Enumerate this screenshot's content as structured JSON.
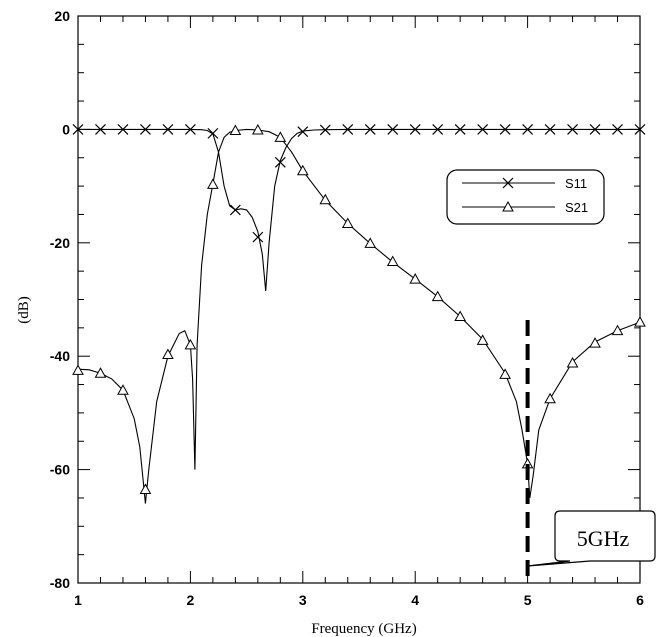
{
  "chart_data": {
    "type": "line",
    "title": "",
    "xlabel": "Frequency (GHz)",
    "ylabel": "(dB)",
    "xlim": [
      1,
      6
    ],
    "ylim": [
      -80,
      20
    ],
    "xticks": [
      "1",
      "2",
      "3",
      "4",
      "5",
      "6"
    ],
    "yticks": [
      "20",
      "0",
      "-20",
      "-40",
      "-60",
      "-80"
    ],
    "grid": false,
    "legend_position": "right",
    "series": [
      {
        "name": "S11",
        "marker": "x",
        "curve_x": [
          1.0,
          1.2,
          1.4,
          1.6,
          1.8,
          2.0,
          2.1,
          2.15,
          2.2,
          2.25,
          2.3,
          2.35,
          2.4,
          2.45,
          2.5,
          2.55,
          2.6,
          2.64,
          2.67,
          2.7,
          2.75,
          2.8,
          2.85,
          2.9,
          2.95,
          3.0,
          3.1,
          3.2,
          3.4,
          3.6,
          3.8,
          4.0,
          4.5,
          5.0,
          5.5,
          6.0
        ],
        "curve_y": [
          0,
          0,
          0,
          0,
          0,
          0,
          -0.05,
          -0.2,
          -0.8,
          -4,
          -10,
          -13.5,
          -14.2,
          -14,
          -14.2,
          -15.5,
          -18,
          -22,
          -28.5,
          -20,
          -10,
          -5.5,
          -3.2,
          -1.6,
          -0.7,
          -0.3,
          -0.1,
          -0.05,
          0,
          0,
          0,
          0,
          0,
          0,
          0,
          0
        ],
        "marker_x": [
          1.0,
          1.2,
          1.4,
          1.6,
          1.8,
          2.0,
          2.2,
          2.4,
          2.6,
          2.8,
          3.0,
          3.2,
          3.4,
          3.6,
          3.8,
          4.0,
          4.2,
          4.4,
          4.6,
          4.8,
          5.0,
          5.2,
          5.4,
          5.6,
          5.8,
          6.0
        ],
        "marker_y": [
          0,
          0,
          0,
          0,
          0,
          0,
          -0.7,
          -14.2,
          -19,
          -5.8,
          -0.4,
          -0.1,
          0,
          0,
          0,
          0,
          0,
          0,
          0,
          0,
          0,
          0,
          0,
          0,
          0,
          0
        ]
      },
      {
        "name": "S21",
        "marker": "triangle",
        "curve_x": [
          1.0,
          1.1,
          1.2,
          1.3,
          1.4,
          1.5,
          1.55,
          1.58,
          1.6,
          1.63,
          1.7,
          1.8,
          1.9,
          1.95,
          2.0,
          2.02,
          2.04,
          2.06,
          2.1,
          2.15,
          2.2,
          2.25,
          2.3,
          2.35,
          2.4,
          2.5,
          2.6,
          2.7,
          2.8,
          2.9,
          3.0,
          3.2,
          3.4,
          3.6,
          3.8,
          4.0,
          4.2,
          4.4,
          4.6,
          4.8,
          4.9,
          4.95,
          5.0,
          5.02,
          5.05,
          5.1,
          5.2,
          5.4,
          5.6,
          5.8,
          6.0
        ],
        "curve_y": [
          -42.3,
          -42.4,
          -43,
          -44,
          -46,
          -51,
          -56,
          -62,
          -66,
          -60,
          -48,
          -40,
          -36,
          -35.5,
          -38,
          -44,
          -60,
          -38,
          -24,
          -15,
          -9.6,
          -4,
          -1.4,
          -0.5,
          -0.2,
          0,
          -0.1,
          -0.4,
          -1.4,
          -4,
          -7.3,
          -12.5,
          -16.6,
          -20.1,
          -23.4,
          -26.4,
          -29.5,
          -33,
          -37,
          -43,
          -48,
          -53,
          -59,
          -65,
          -61,
          -53,
          -47.5,
          -41,
          -37.5,
          -35.5,
          -34
        ],
        "marker_x": [
          1.0,
          1.2,
          1.4,
          1.6,
          1.8,
          2.0,
          2.2,
          2.4,
          2.6,
          2.8,
          3.0,
          3.2,
          3.4,
          3.6,
          3.8,
          4.0,
          4.2,
          4.4,
          4.6,
          4.8,
          5.0,
          5.2,
          5.4,
          5.6,
          5.8,
          6.0
        ],
        "marker_y": [
          -42.5,
          -43,
          -46,
          -63.5,
          -39.7,
          -38,
          -9.7,
          -0.2,
          -0.1,
          -1.4,
          -7.3,
          -12.4,
          -16.6,
          -20.1,
          -23.3,
          -26.4,
          -29.5,
          -33,
          -37.2,
          -43.2,
          -59,
          -47.5,
          -41.2,
          -37.7,
          -35.5,
          -34
        ]
      }
    ],
    "marker_line": {
      "x": 5.0,
      "style": "dashed",
      "color": "#000000"
    },
    "annotation": {
      "text": "5GHz",
      "points_to_x": 5.0,
      "points_to_y": -77
    }
  }
}
